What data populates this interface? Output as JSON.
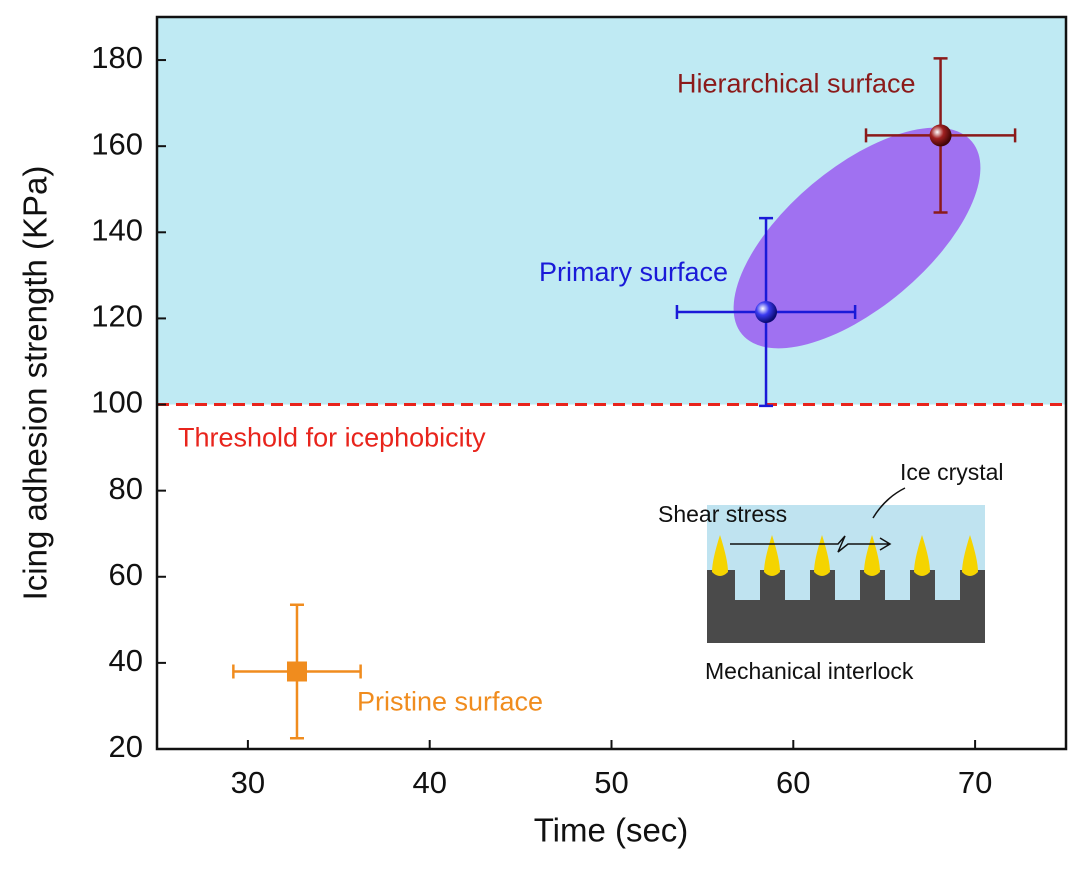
{
  "chart_data": {
    "type": "scatter",
    "x_label": "Time (sec)",
    "y_label": "Icing adhesion strength (KPa)",
    "xlim": [
      25,
      75
    ],
    "xticks": [
      30,
      40,
      50,
      60,
      70
    ],
    "ylim": [
      20,
      190
    ],
    "yticks": [
      20,
      40,
      60,
      80,
      100,
      120,
      140,
      160,
      180
    ],
    "threshold": {
      "value": 100,
      "label": "Threshold for icephobicity",
      "color": "#e8241c",
      "fill_above": "#bfeaf3"
    },
    "series": [
      {
        "name": "Pristine surface",
        "color": "#f08c1e",
        "marker": "square",
        "x": 32.7,
        "y": 38,
        "xerr": 3.5,
        "yerr": 15.5
      },
      {
        "name": "Primary surface",
        "color": "#1a1ad8",
        "marker": "sphere",
        "x": 58.5,
        "y": 121.5,
        "xerr": 4.9,
        "yerr": 21.8
      },
      {
        "name": "Hierarchical surface",
        "color": "#8b1a1a",
        "marker": "sphere",
        "x": 68.1,
        "y": 162.5,
        "xerr": 4.1,
        "yerr": 17.9
      }
    ],
    "inset": {
      "top_label": "Ice crystal",
      "arrow_label": "Shear stress",
      "bottom_label": "Mechanical interlock"
    }
  }
}
